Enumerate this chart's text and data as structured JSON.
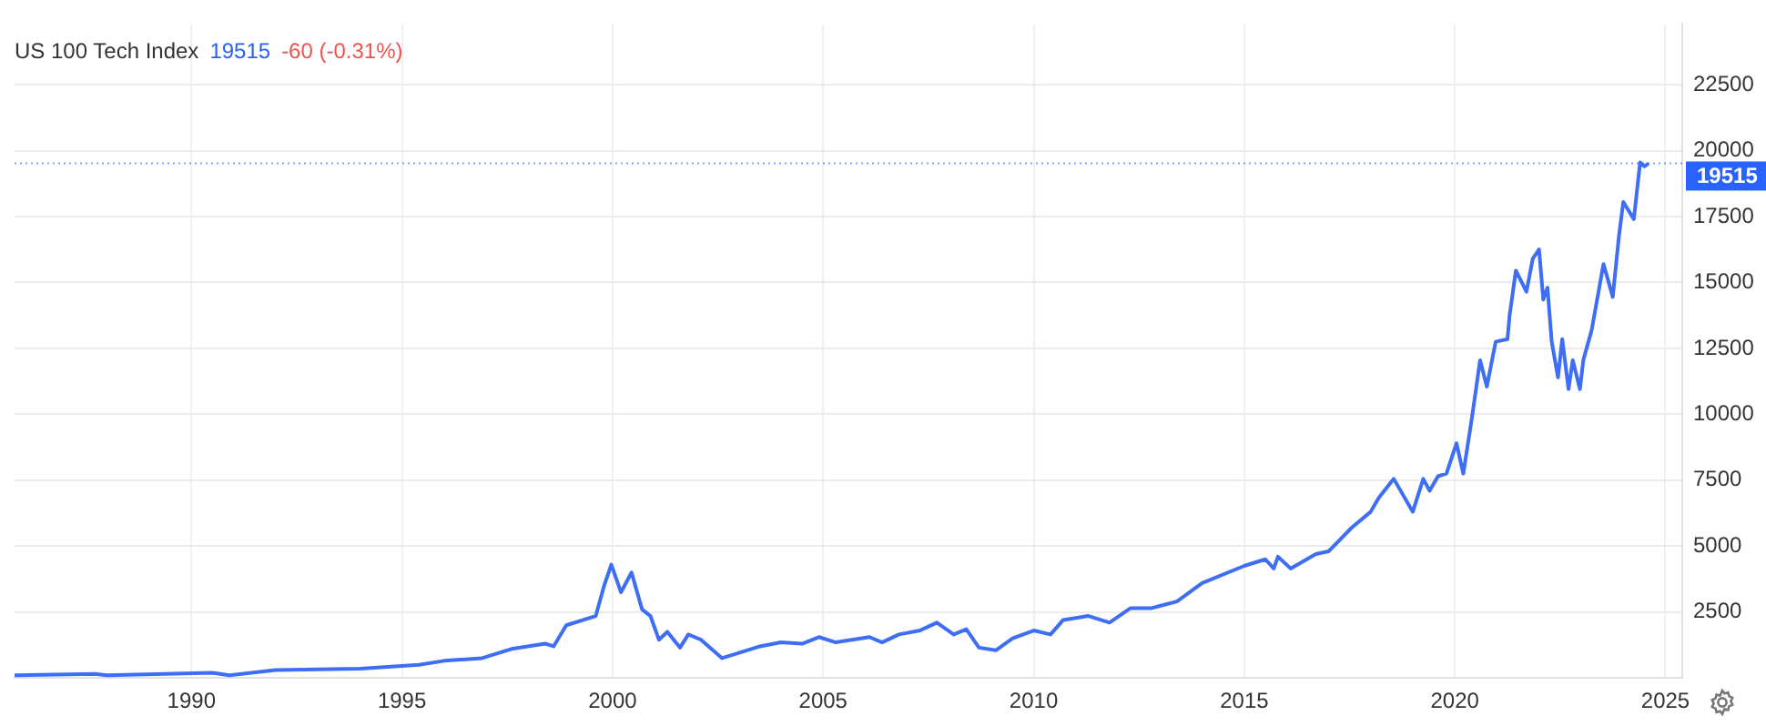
{
  "chart_data": {
    "type": "line",
    "title": "US 100 Tech Index",
    "subtitle": "19515",
    "annotations": [
      "-60 (-0.31%)"
    ],
    "xlim": [
      1985.8,
      2025.4
    ],
    "xticks": [
      1990,
      1995,
      2000,
      2005,
      2010,
      2015,
      2020,
      2025
    ],
    "ylim": [
      0,
      24800
    ],
    "yticks": [
      2500,
      5000,
      7500,
      10000,
      12500,
      15000,
      17500,
      20000,
      22500
    ],
    "grid": true,
    "legend": false,
    "marker": "none",
    "line_style": "solid",
    "ref_lines": [
      {
        "axis": "y",
        "value": 19515,
        "label": "19515",
        "color": "#2962ff",
        "line_style": "dotted"
      }
    ],
    "series": [
      {
        "color": "#3d6ef5",
        "x": [
          1985.8,
          1987.7,
          1988.0,
          1990.5,
          1990.9,
          1992.0,
          1994.0,
          1995.4,
          1996.0,
          1996.9,
          1997.6,
          1998.4,
          1998.6,
          1998.9,
          1999.6,
          1999.8,
          1999.97,
          2000.2,
          2000.45,
          2000.7,
          2000.9,
          2001.1,
          2001.3,
          2001.6,
          2001.8,
          2002.1,
          2002.6,
          2003.0,
          2003.5,
          2004.0,
          2004.5,
          2004.9,
          2005.3,
          2006.1,
          2006.4,
          2006.8,
          2007.3,
          2007.7,
          2008.1,
          2008.4,
          2008.7,
          2009.1,
          2009.5,
          2010.0,
          2010.4,
          2010.7,
          2011.3,
          2011.8,
          2012.3,
          2012.8,
          2013.4,
          2014.0,
          2015.0,
          2015.5,
          2015.7,
          2015.8,
          2016.1,
          2016.7,
          2017.0,
          2017.55,
          2018.0,
          2018.2,
          2018.55,
          2019.0,
          2019.25,
          2019.4,
          2019.6,
          2019.8,
          2020.04,
          2020.2,
          2020.4,
          2020.6,
          2020.76,
          2020.97,
          2021.25,
          2021.3,
          2021.45,
          2021.7,
          2021.85,
          2022.0,
          2022.1,
          2022.2,
          2022.3,
          2022.45,
          2022.55,
          2022.7,
          2022.8,
          2022.97,
          2023.05,
          2023.25,
          2023.53,
          2023.75,
          2023.9,
          2024.0,
          2024.25,
          2024.4,
          2024.5,
          2024.6
        ],
        "values": [
          100,
          150,
          100,
          200,
          100,
          300,
          350,
          500,
          650,
          750,
          1100,
          1300,
          1200,
          2000,
          2350,
          3500,
          4300,
          3250,
          4000,
          2600,
          2350,
          1450,
          1750,
          1150,
          1650,
          1450,
          750,
          950,
          1200,
          1350,
          1300,
          1550,
          1350,
          1550,
          1350,
          1650,
          1800,
          2100,
          1650,
          1850,
          1150,
          1050,
          1500,
          1800,
          1650,
          2200,
          2350,
          2100,
          2650,
          2650,
          2900,
          3600,
          4250,
          4500,
          4150,
          4600,
          4150,
          4700,
          4800,
          5700,
          6300,
          6850,
          7550,
          6300,
          7550,
          7100,
          7650,
          7750,
          8900,
          7750,
          9800,
          12050,
          11050,
          12750,
          12850,
          13750,
          15450,
          14650,
          15900,
          16250,
          14350,
          14800,
          12750,
          11400,
          12850,
          10950,
          12050,
          10950,
          12050,
          13200,
          15700,
          14450,
          16800,
          18050,
          17400,
          19550,
          19400,
          19515
        ]
      }
    ]
  }
}
